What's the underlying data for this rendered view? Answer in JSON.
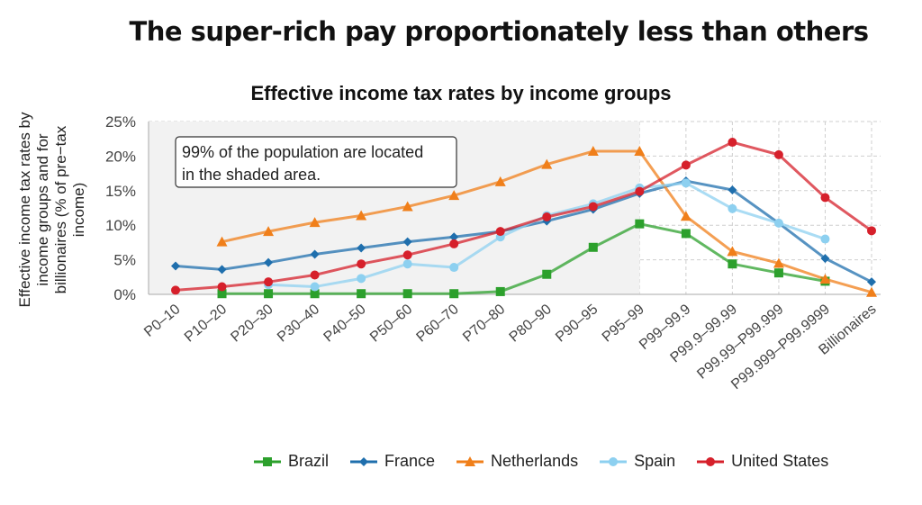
{
  "header": {
    "title": "The super-rich pay proportionately less than others"
  },
  "chart_data": {
    "type": "line",
    "title": "Effective income tax rates by income groups",
    "ylabel": "Effective income tax rates by income groups  and for billionaires (% of pre−tax income)",
    "xlabel": "",
    "categories": [
      "P0–10",
      "P10–20",
      "P20–30",
      "P30–40",
      "P40–50",
      "P50–60",
      "P60–70",
      "P70–80",
      "P80–90",
      "P90–95",
      "P95–99",
      "P99–99.9",
      "P99.9–99.99",
      "P99.99–P99.999",
      "P99.999–P99.9999",
      "Billionaires"
    ],
    "ylim": [
      0,
      25
    ],
    "yticks": [
      "0%",
      "5%",
      "10%",
      "15%",
      "20%",
      "25%"
    ],
    "grid": true,
    "shaded_range": [
      "P0–10",
      "P95–99"
    ],
    "annotation": "99% of the population are located in the shaded area.",
    "annotation_lines": [
      "99% of the population are located",
      "in the shaded area."
    ],
    "legend_position": "bottom",
    "series": [
      {
        "name": "Brazil",
        "color": "#2ca02c",
        "marker": "square",
        "values": [
          null,
          0.1,
          0.1,
          0.1,
          0.1,
          0.1,
          0.1,
          0.4,
          2.9,
          6.8,
          10.2,
          8.8,
          4.4,
          3.1,
          1.9,
          null
        ]
      },
      {
        "name": "France",
        "color": "#1f6fad",
        "marker": "diamond",
        "values": [
          4.1,
          3.6,
          4.6,
          5.8,
          6.7,
          7.6,
          8.3,
          9.1,
          10.6,
          12.3,
          14.6,
          16.4,
          15.1,
          10.3,
          5.2,
          1.8
        ]
      },
      {
        "name": "Netherlands",
        "color": "#f07f1a",
        "marker": "triangle",
        "values": [
          null,
          7.6,
          9.1,
          10.4,
          11.4,
          12.7,
          14.3,
          16.3,
          18.8,
          20.7,
          20.7,
          11.3,
          6.2,
          4.5,
          2.2,
          0.3
        ]
      },
      {
        "name": "Spain",
        "color": "#8dd0f0",
        "marker": "circle",
        "values": [
          null,
          null,
          1.4,
          1.1,
          2.3,
          4.4,
          3.9,
          8.3,
          11.4,
          13.1,
          15.4,
          16.1,
          12.4,
          10.3,
          8.0,
          null
        ]
      },
      {
        "name": "United States",
        "color": "#d6202b",
        "marker": "circle",
        "values": [
          0.6,
          1.1,
          1.8,
          2.8,
          4.4,
          5.7,
          7.3,
          9.1,
          11.2,
          12.7,
          14.9,
          18.7,
          22.0,
          20.2,
          14.0,
          9.2
        ]
      }
    ]
  }
}
